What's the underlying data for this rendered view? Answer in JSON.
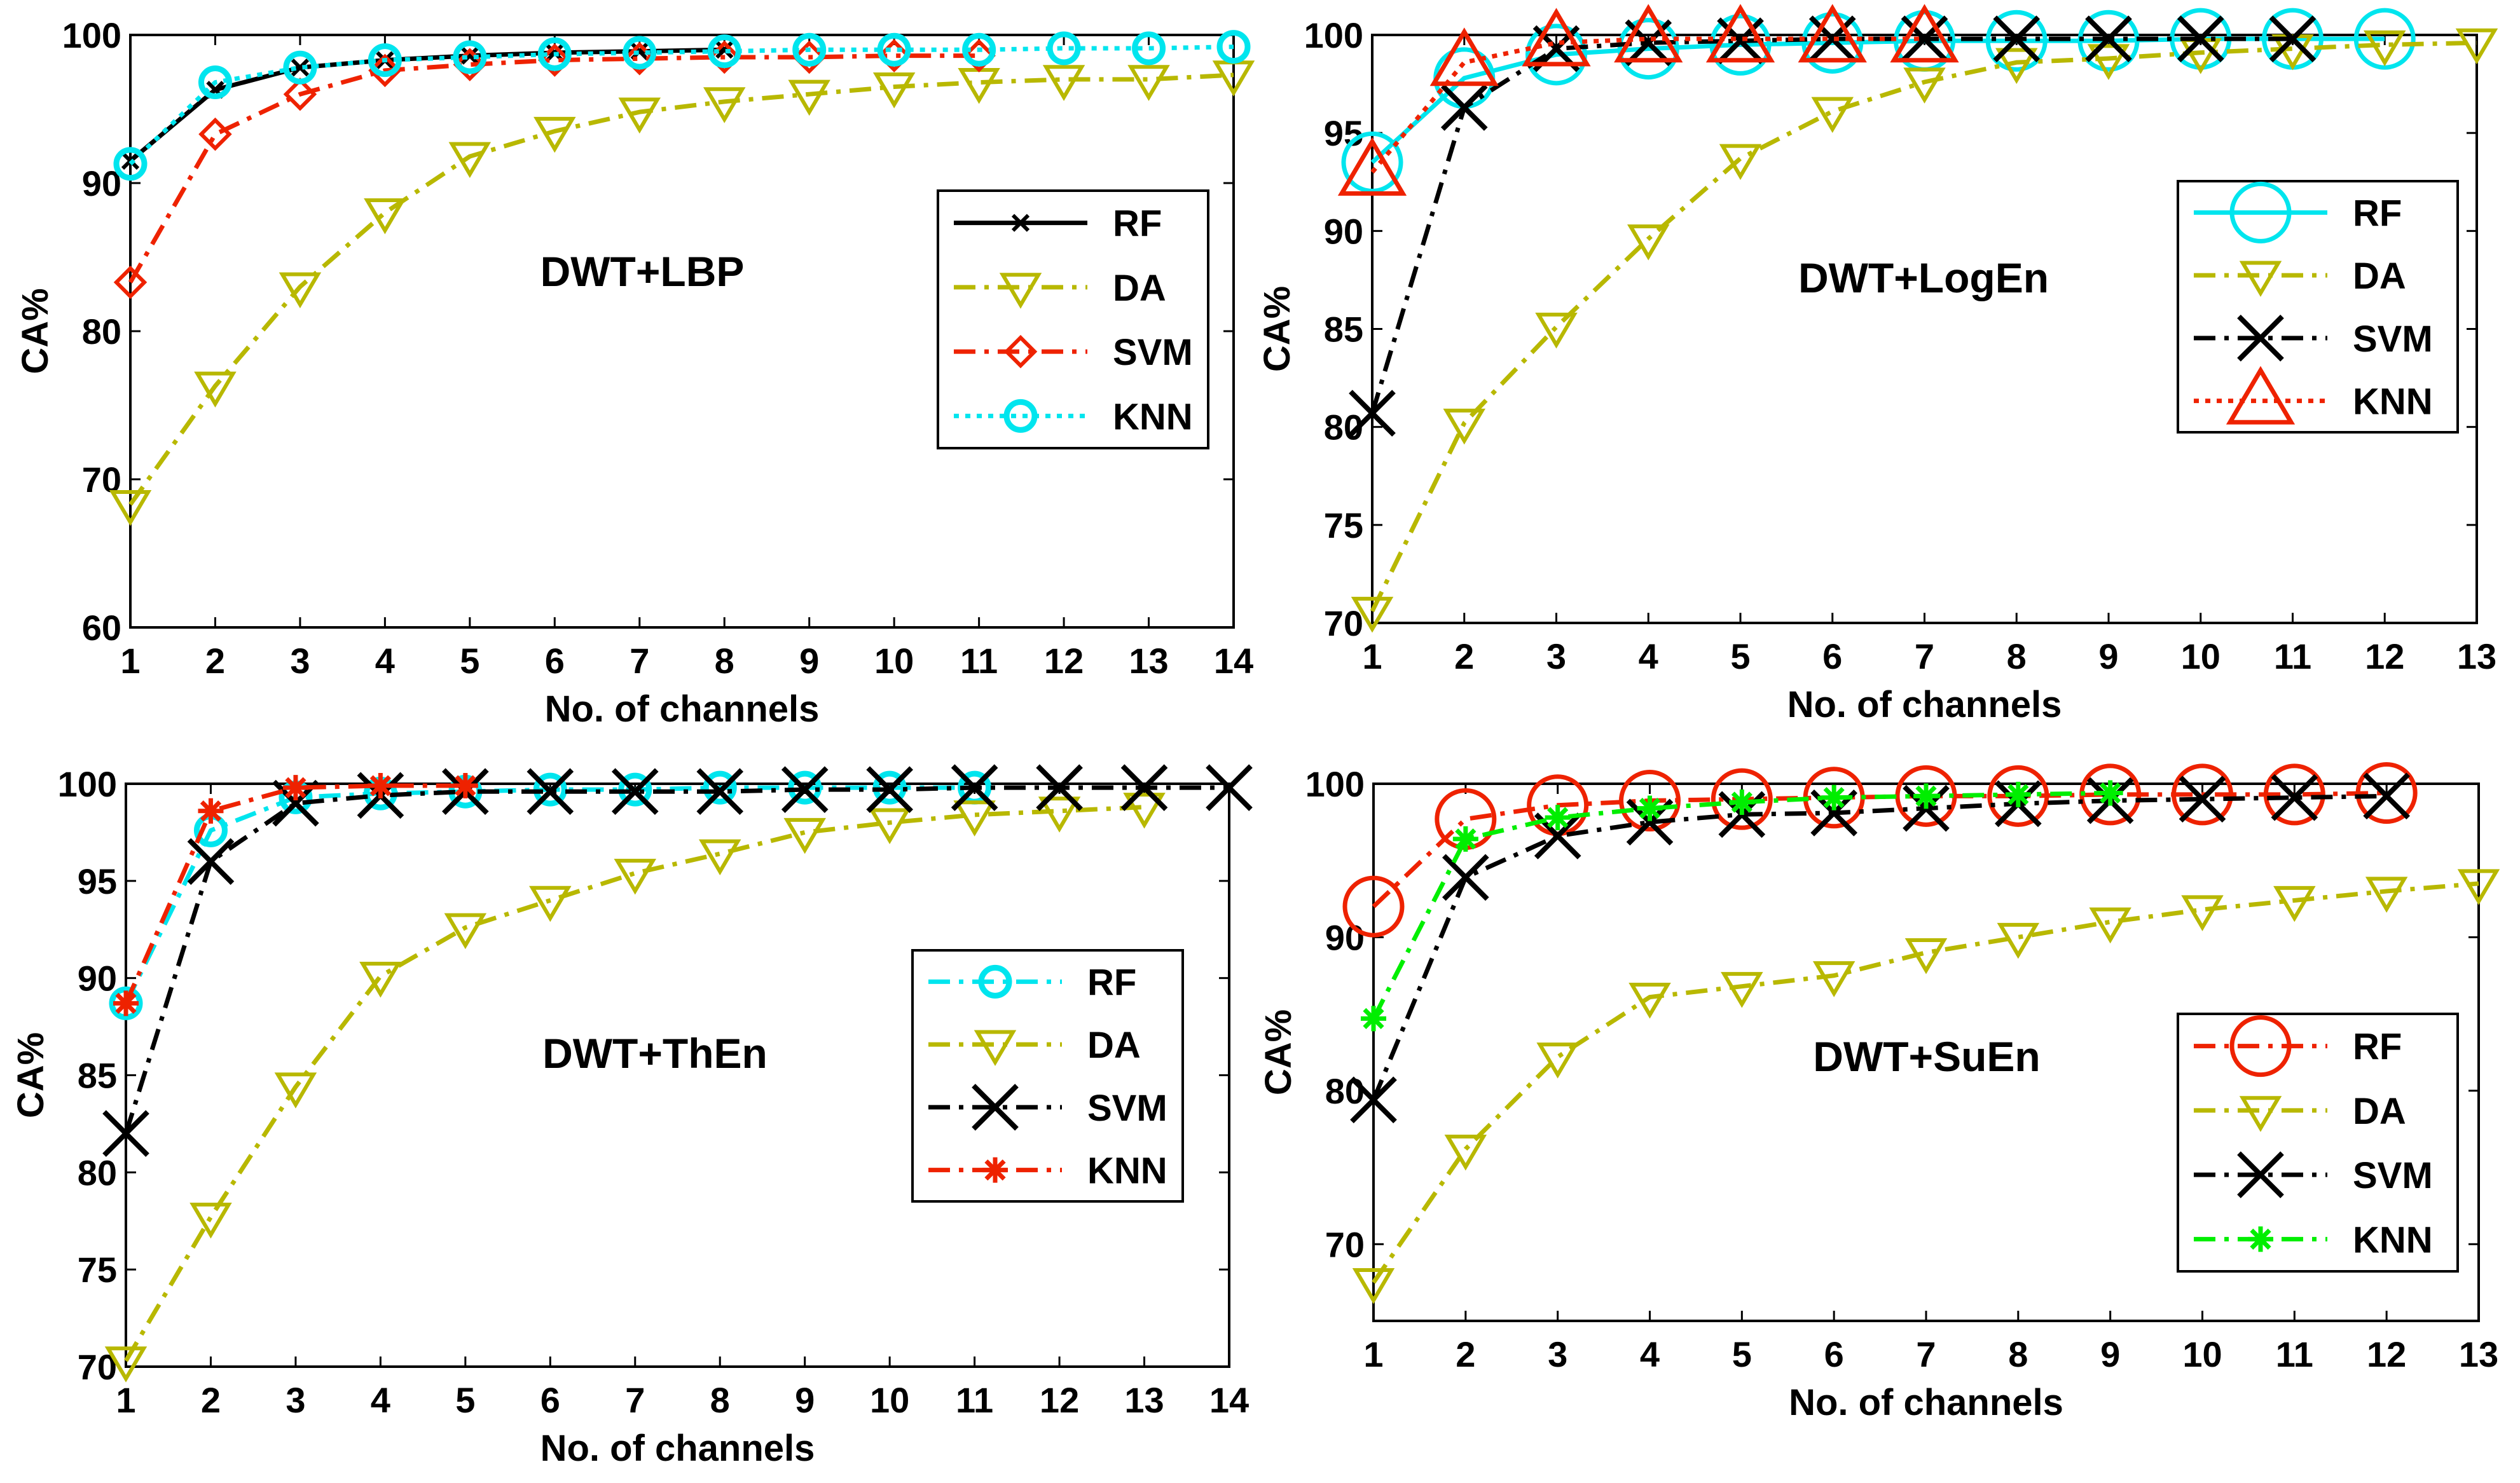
{
  "figure": {
    "colors": {
      "RF_black": "#000000",
      "cyan": "#00e5ee",
      "olive": "#b8b800",
      "red": "#ee2200",
      "green": "#00ee00",
      "black": "#000000"
    }
  },
  "chart_data": [
    {
      "type": "line",
      "title": "DWT+LBP",
      "xlabel": "No. of channels",
      "ylabel": "CA%",
      "xlim": [
        1,
        14
      ],
      "ylim": [
        60,
        100
      ],
      "xticks": [
        1,
        2,
        3,
        4,
        5,
        6,
        7,
        8,
        9,
        10,
        11,
        12,
        13,
        14
      ],
      "yticks": [
        60,
        70,
        80,
        90,
        100
      ],
      "legend": "right",
      "series": [
        {
          "name": "RF",
          "color": "#000000",
          "dash": "solid",
          "marker": "x-small",
          "x": [
            1,
            2,
            3,
            4,
            5,
            6,
            7,
            8
          ],
          "values": [
            91.5,
            96.3,
            97.8,
            98.3,
            98.6,
            98.8,
            98.9,
            99.0
          ]
        },
        {
          "name": "DA",
          "color": "#b8b800",
          "dash": "dashdot",
          "marker": "tri-down",
          "x": [
            1,
            2,
            3,
            4,
            5,
            6,
            7,
            8,
            9,
            10,
            11,
            12,
            13,
            14
          ],
          "values": [
            68.3,
            76.3,
            83.0,
            88.0,
            91.8,
            93.5,
            94.8,
            95.5,
            96.0,
            96.5,
            96.8,
            97.0,
            97.0,
            97.3
          ]
        },
        {
          "name": "SVM",
          "color": "#ee2200",
          "dash": "dashdot",
          "marker": "diamond",
          "x": [
            1,
            2,
            3,
            4,
            5,
            6,
            7,
            8,
            9,
            10,
            11
          ],
          "values": [
            83.3,
            93.3,
            96.0,
            97.6,
            98.0,
            98.3,
            98.4,
            98.5,
            98.5,
            98.6,
            98.6
          ]
        },
        {
          "name": "KNN",
          "color": "#00e5ee",
          "dash": "dotted",
          "marker": "circle",
          "x": [
            1,
            2,
            3,
            4,
            5,
            6,
            7,
            8,
            9,
            10,
            11,
            12,
            13,
            14
          ],
          "values": [
            91.3,
            96.8,
            97.8,
            98.3,
            98.5,
            98.7,
            98.8,
            98.9,
            99.0,
            99.0,
            99.0,
            99.1,
            99.1,
            99.2
          ]
        }
      ]
    },
    {
      "type": "line",
      "title": "DWT+LogEn",
      "xlabel": "No. of channels",
      "ylabel": "CA%",
      "xlim": [
        1,
        13
      ],
      "ylim": [
        70,
        100
      ],
      "xticks": [
        1,
        2,
        3,
        4,
        5,
        6,
        7,
        8,
        9,
        10,
        11,
        12,
        13
      ],
      "yticks": [
        70,
        75,
        80,
        85,
        90,
        95,
        100
      ],
      "legend": "right",
      "series": [
        {
          "name": "RF",
          "color": "#00e5ee",
          "dash": "solid",
          "marker": "circle-large",
          "x": [
            1,
            2,
            3,
            4,
            5,
            6,
            7,
            8,
            9,
            10,
            11,
            12
          ],
          "values": [
            93.5,
            97.8,
            99.0,
            99.3,
            99.5,
            99.6,
            99.7,
            99.7,
            99.7,
            99.8,
            99.8,
            99.8
          ]
        },
        {
          "name": "DA",
          "color": "#b8b800",
          "dash": "dashdot",
          "marker": "tri-down",
          "x": [
            1,
            2,
            3,
            4,
            5,
            6,
            7,
            8,
            9,
            10,
            11,
            12,
            13
          ],
          "values": [
            70.6,
            80.2,
            85.1,
            89.6,
            93.7,
            96.1,
            97.6,
            98.6,
            98.8,
            99.1,
            99.3,
            99.5,
            99.6
          ]
        },
        {
          "name": "SVM",
          "color": "#000000",
          "dash": "dashdot",
          "marker": "x-large",
          "x": [
            1,
            2,
            3,
            4,
            5,
            6,
            7,
            8,
            9,
            10,
            11
          ],
          "values": [
            80.7,
            96.3,
            99.3,
            99.6,
            99.7,
            99.8,
            99.8,
            99.8,
            99.8,
            99.8,
            99.8
          ]
        },
        {
          "name": "KNN",
          "color": "#ee2200",
          "dash": "dotted",
          "marker": "tri-up-large",
          "x": [
            1,
            2,
            3,
            4,
            5,
            6,
            7
          ],
          "values": [
            93.0,
            98.6,
            99.6,
            99.8,
            99.8,
            99.8,
            99.8
          ]
        }
      ]
    },
    {
      "type": "line",
      "title": "DWT+ThEn",
      "xlabel": "No. of channels",
      "ylabel": "CA%",
      "xlim": [
        1,
        14
      ],
      "ylim": [
        70,
        100
      ],
      "xticks": [
        1,
        2,
        3,
        4,
        5,
        6,
        7,
        8,
        9,
        10,
        11,
        12,
        13,
        14
      ],
      "yticks": [
        70,
        75,
        80,
        85,
        90,
        95,
        100
      ],
      "legend": "right",
      "series": [
        {
          "name": "RF",
          "color": "#00e5ee",
          "dash": "dashdot",
          "marker": "circle",
          "x": [
            1,
            2,
            3,
            4,
            5,
            6,
            7,
            8,
            9,
            10,
            11
          ],
          "values": [
            88.7,
            97.6,
            99.3,
            99.5,
            99.6,
            99.7,
            99.7,
            99.8,
            99.8,
            99.8,
            99.8
          ]
        },
        {
          "name": "DA",
          "color": "#b8b800",
          "dash": "dashdot",
          "marker": "tri-down",
          "x": [
            1,
            2,
            3,
            4,
            5,
            6,
            7,
            8,
            9,
            10,
            11,
            12,
            13
          ],
          "values": [
            70.3,
            77.7,
            84.4,
            90.1,
            92.6,
            94.0,
            95.4,
            96.4,
            97.5,
            98.0,
            98.4,
            98.6,
            98.8
          ]
        },
        {
          "name": "SVM",
          "color": "#000000",
          "dash": "dashdot",
          "marker": "x-large",
          "x": [
            1,
            2,
            3,
            4,
            5,
            6,
            7,
            8,
            9,
            10,
            11,
            12,
            13,
            14
          ],
          "values": [
            82.0,
            96.0,
            99.0,
            99.4,
            99.6,
            99.6,
            99.6,
            99.6,
            99.7,
            99.7,
            99.8,
            99.8,
            99.8,
            99.8
          ]
        },
        {
          "name": "KNN",
          "color": "#ee2200",
          "dash": "dashdot",
          "marker": "star",
          "x": [
            1,
            2,
            3,
            4,
            5
          ],
          "values": [
            88.7,
            98.6,
            99.8,
            99.9,
            99.9
          ]
        }
      ]
    },
    {
      "type": "line",
      "title": "DWT+SuEn",
      "xlabel": "No. of channels",
      "ylabel": "CA%",
      "xlim": [
        1,
        13
      ],
      "ylim": [
        65,
        100
      ],
      "xticks": [
        1,
        2,
        3,
        4,
        5,
        6,
        7,
        8,
        9,
        10,
        11,
        12,
        13
      ],
      "yticks": [
        70,
        80,
        90,
        100
      ],
      "legend": "right",
      "series": [
        {
          "name": "RF",
          "color": "#ee2200",
          "dash": "dashdot",
          "marker": "circle-large",
          "x": [
            1,
            2,
            3,
            4,
            5,
            6,
            7,
            8,
            9,
            10,
            11,
            12
          ],
          "values": [
            92.0,
            97.7,
            98.6,
            98.9,
            99.0,
            99.1,
            99.2,
            99.2,
            99.3,
            99.3,
            99.3,
            99.4
          ]
        },
        {
          "name": "DA",
          "color": "#b8b800",
          "dash": "dashdot",
          "marker": "tri-down",
          "x": [
            1,
            2,
            3,
            4,
            5,
            6,
            7,
            8,
            9,
            10,
            11,
            12,
            13
          ],
          "values": [
            67.5,
            76.2,
            82.2,
            86.1,
            86.8,
            87.5,
            89.0,
            90.0,
            91.0,
            91.8,
            92.4,
            93.0,
            93.5
          ]
        },
        {
          "name": "SVM",
          "color": "#000000",
          "dash": "dashdot",
          "marker": "x-large",
          "x": [
            1,
            2,
            3,
            4,
            5,
            6,
            7,
            8,
            9,
            10,
            11,
            12
          ],
          "values": [
            79.4,
            93.9,
            96.6,
            97.5,
            98.0,
            98.1,
            98.4,
            98.7,
            98.9,
            99.0,
            99.1,
            99.2
          ]
        },
        {
          "name": "KNN",
          "color": "#00ee00",
          "dash": "dashdot",
          "marker": "star",
          "x": [
            1,
            2,
            3,
            4,
            5,
            6,
            7,
            8,
            9
          ],
          "values": [
            84.7,
            96.4,
            97.8,
            98.4,
            98.8,
            99.1,
            99.2,
            99.3,
            99.4
          ]
        }
      ]
    }
  ]
}
